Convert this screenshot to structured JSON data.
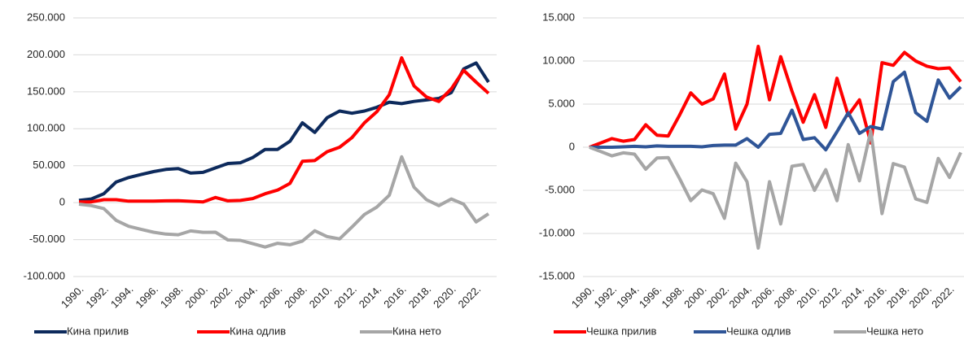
{
  "chart_data": [
    {
      "type": "line",
      "categories": [
        "1990.",
        null,
        "1992.",
        null,
        "1994.",
        null,
        "1996.",
        null,
        "1998.",
        null,
        "2000.",
        null,
        "2002.",
        null,
        "2004.",
        null,
        "2006.",
        null,
        "2008.",
        null,
        "2010.",
        null,
        "2012.",
        null,
        "2014.",
        null,
        "2016.",
        null,
        "2018.",
        null,
        "2020.",
        null,
        "2022.",
        null
      ],
      "ylim": [
        -100000,
        250000
      ],
      "yticks": [
        {
          "value": -100000,
          "label": "-100.000"
        },
        {
          "value": -50000,
          "label": "-50.000"
        },
        0,
        {
          "value": 50000,
          "label": "50.000"
        },
        {
          "value": 100000,
          "label": "100.000"
        },
        {
          "value": 150000,
          "label": "150.000"
        },
        {
          "value": 200000,
          "label": "200.000"
        },
        {
          "value": 250000,
          "label": "250.000"
        }
      ],
      "grid": true,
      "series": [
        {
          "name": "Кина прилив",
          "color": "#0d2a5c",
          "values": [
            3000,
            5000,
            12000,
            28000,
            34000,
            38000,
            42000,
            45000,
            46000,
            40000,
            41000,
            47000,
            53000,
            54000,
            61000,
            72000,
            72000,
            83000,
            108000,
            95000,
            115000,
            124000,
            121000,
            124000,
            129000,
            136000,
            134000,
            137000,
            139000,
            141000,
            149000,
            181000,
            189000,
            163000
          ]
        },
        {
          "name": "Кина одлив",
          "color": "#ff0000",
          "values": [
            1000,
            1000,
            4000,
            4000,
            2000,
            2000,
            2000,
            2500,
            2600,
            1800,
            900,
            7000,
            2500,
            3000,
            5500,
            12000,
            17000,
            26000,
            56000,
            57000,
            69000,
            75000,
            88000,
            108000,
            123000,
            146000,
            196000,
            158000,
            143000,
            137000,
            154000,
            179000,
            163000,
            148000
          ]
        },
        {
          "name": "Кина нето",
          "color": "#a6a6a6",
          "values": [
            -2000,
            -4000,
            -8000,
            -24000,
            -32000,
            -36000,
            -40000,
            -42500,
            -43400,
            -38200,
            -40100,
            -40000,
            -50500,
            -51000,
            -55500,
            -60000,
            -55000,
            -57000,
            -52000,
            -38000,
            -46000,
            -49000,
            -33000,
            -16000,
            -6000,
            10000,
            62000,
            21000,
            4000,
            -4000,
            5000,
            -2000,
            -26000,
            -15000
          ]
        }
      ]
    },
    {
      "type": "line",
      "categories": [
        "1990.",
        null,
        "1992.",
        null,
        "1994.",
        null,
        "1996.",
        null,
        "1998.",
        null,
        "2000.",
        null,
        "2002.",
        null,
        "2004.",
        null,
        "2006.",
        null,
        "2008.",
        null,
        "2010.",
        null,
        "2012.",
        null,
        "2014.",
        null,
        "2016.",
        null,
        "2018.",
        null,
        "2020.",
        null,
        "2022.",
        null
      ],
      "ylim": [
        -15000,
        15000
      ],
      "yticks": [
        {
          "value": -15000,
          "label": "-15.000"
        },
        {
          "value": -10000,
          "label": "-10.000"
        },
        {
          "value": -5000,
          "label": "-5.000"
        },
        0,
        {
          "value": 5000,
          "label": "5.000"
        },
        {
          "value": 10000,
          "label": "10.000"
        },
        {
          "value": 15000,
          "label": "15.000"
        }
      ],
      "grid": true,
      "series": [
        {
          "name": "Чешка прилив",
          "color": "#ff0000",
          "values": [
            0,
            500,
            1000,
            700,
            900,
            2600,
            1400,
            1300,
            3700,
            6300,
            5000,
            5600,
            8500,
            2100,
            5000,
            11700,
            5500,
            10500,
            6500,
            2900,
            6100,
            2300,
            8000,
            3700,
            5500,
            500,
            9800,
            9500,
            11000,
            10000,
            9400,
            9100,
            9200,
            7600
          ]
        },
        {
          "name": "Чешка одлив",
          "color": "#2f5597",
          "values": [
            0,
            0,
            0,
            50,
            100,
            50,
            150,
            100,
            100,
            100,
            50,
            200,
            250,
            250,
            1000,
            0,
            1500,
            1600,
            4300,
            900,
            1100,
            -300,
            1800,
            4000,
            1600,
            2400,
            2100,
            7600,
            8700,
            4000,
            3000,
            7800,
            5700,
            7000
          ]
        },
        {
          "name": "Чешка нето",
          "color": "#a6a6a6",
          "values": [
            0,
            -500,
            -1000,
            -650,
            -800,
            -2550,
            -1250,
            -1200,
            -3600,
            -6200,
            -4950,
            -5400,
            -8250,
            -1850,
            -4000,
            -11700,
            -4000,
            -8900,
            -2200,
            -2000,
            -5000,
            -2600,
            -6200,
            300,
            -3900,
            1900,
            -7700,
            -1900,
            -2300,
            -6000,
            -6400,
            -1300,
            -3500,
            -600
          ]
        }
      ]
    }
  ]
}
